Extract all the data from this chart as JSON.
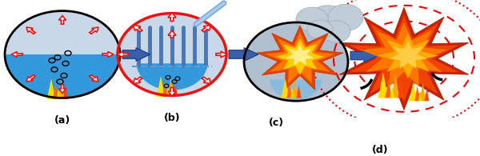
{
  "labels": [
    "(a)",
    "(b)",
    "(c)",
    "(d)"
  ],
  "colors": {
    "background": "#ffffff",
    "blue_liquid": "#3399dd",
    "light_gray_gas": "#c8d8e8",
    "red": "#ee1111",
    "orange": "#ff6600",
    "yellow": "#ffdd00",
    "arrow_blue": "#3a5faa",
    "dark_blue": "#2244aa",
    "gray_blue": "#8faacc",
    "black": "#000000",
    "dashed_red": "#ee0000",
    "white": "#ffffff",
    "bar_blue": "#4477bb",
    "cloud_gray": "#c0ccd8",
    "orange_red": "#dd2200",
    "flame_orange": "#ff5500"
  }
}
